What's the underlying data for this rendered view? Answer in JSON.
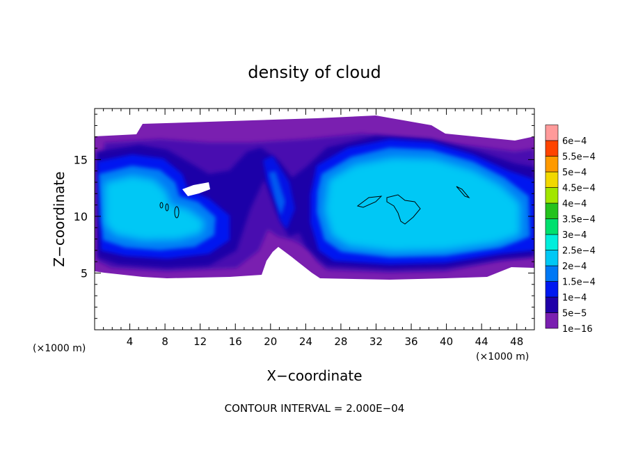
{
  "chart_data": {
    "type": "heatmap",
    "title": "density of cloud",
    "xlabel": "X−coordinate",
    "ylabel": "Z−coordinate",
    "x_unit": "(×1000 m)",
    "z_unit": "(×1000 m)",
    "xlim": [
      0,
      50
    ],
    "ylim": [
      0,
      19.5
    ],
    "x_ticks": [
      4,
      8,
      12,
      16,
      20,
      24,
      28,
      32,
      36,
      40,
      44,
      48
    ],
    "y_ticks": [
      5,
      10,
      15
    ],
    "footer": "CONTOUR INTERVAL = 2.000E−04",
    "legend": {
      "placement": "right",
      "levels": [
        {
          "label": "1e−16",
          "color": "#7a1fb0"
        },
        {
          "label": "5e−5",
          "color": "#1f00a8"
        },
        {
          "label": "1e−4",
          "color": "#0018f0"
        },
        {
          "label": "1.5e−4",
          "color": "#0078f5"
        },
        {
          "label": "2e−4",
          "color": "#00c8f5"
        },
        {
          "label": "2.5e−4",
          "color": "#00eedc"
        },
        {
          "label": "3e−4",
          "color": "#00e06e"
        },
        {
          "label": "3.5e−4",
          "color": "#24c21c"
        },
        {
          "label": "4e−4",
          "color": "#a2e600"
        },
        {
          "label": "4.5e−4",
          "color": "#f2d800"
        },
        {
          "label": "5e−4",
          "color": "#ff9a00"
        },
        {
          "label": "5.5e−4",
          "color": "#ff4400"
        },
        {
          "label": "6e−4",
          "color": "#ff9a9a"
        }
      ]
    }
  }
}
